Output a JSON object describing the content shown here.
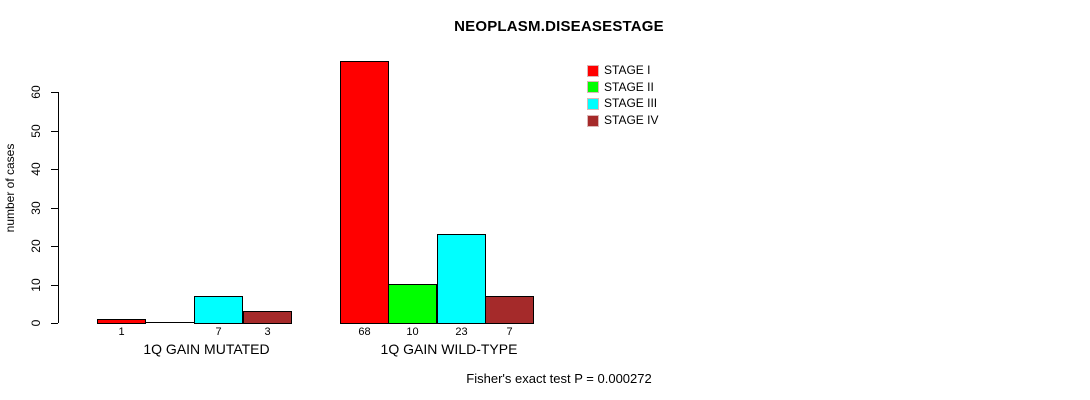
{
  "title": "NEOPLASM.DISEASESTAGE",
  "chart_data": {
    "type": "bar",
    "title": "NEOPLASM.DISEASESTAGE",
    "xlabel": "",
    "ylabel": "number of cases",
    "categories": [
      "1Q GAIN MUTATED",
      "1Q GAIN WILD-TYPE"
    ],
    "series": [
      {
        "name": "STAGE I",
        "color": "#FF0000",
        "values": [
          1,
          68
        ]
      },
      {
        "name": "STAGE II",
        "color": "#00FF00",
        "values": [
          0,
          10
        ]
      },
      {
        "name": "STAGE III",
        "color": "#00FFFF",
        "values": [
          7,
          23
        ]
      },
      {
        "name": "STAGE IV",
        "color": "#A52A2A",
        "values": [
          3,
          7
        ]
      }
    ],
    "yticks": [
      0,
      10,
      20,
      30,
      40,
      50,
      60
    ],
    "ylim": [
      0,
      68
    ],
    "bar_value_labels_shown": true,
    "zero_value_label_hidden": true,
    "grid": false,
    "legend_position": "top-right",
    "annotation": "Fisher's exact test P = 0.000272"
  }
}
